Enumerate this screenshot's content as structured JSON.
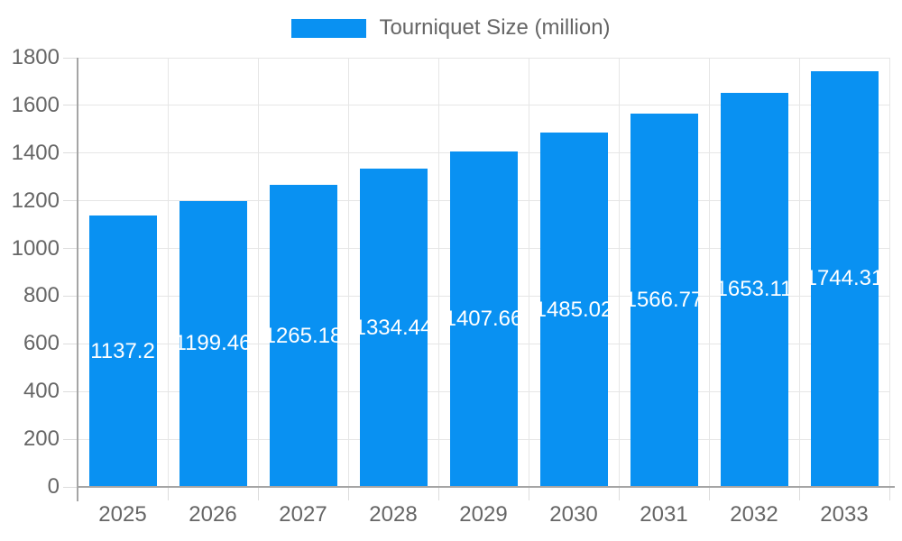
{
  "legend": {
    "label": "Tourniquet Size (million)"
  },
  "colors": {
    "bar": "#0991f2",
    "grid": "#e6e6e6",
    "tick": "#dcdcdc",
    "axis": "#a5a5a5",
    "text": "#666666",
    "bar_label": "#ffffff",
    "background": "#ffffff"
  },
  "chart_data": {
    "type": "bar",
    "title": "",
    "legend_position": "top",
    "grid": true,
    "categories": [
      "2025",
      "2026",
      "2027",
      "2028",
      "2029",
      "2030",
      "2031",
      "2032",
      "2033"
    ],
    "series": [
      {
        "name": "Tourniquet Size (million)",
        "values": [
          1137.2,
          1199.46,
          1265.18,
          1334.44,
          1407.66,
          1485.02,
          1566.77,
          1653.11,
          1744.31
        ]
      }
    ],
    "value_labels": [
      "1137.2",
      "1199.46",
      "1265.18",
      "1334.44",
      "1407.66",
      "1485.02",
      "1566.77",
      "1653.11",
      "1744.31"
    ],
    "xlabel": "",
    "ylabel": "",
    "ylim": [
      0,
      1800
    ],
    "yticks": [
      0,
      200,
      400,
      600,
      800,
      1000,
      1200,
      1400,
      1600,
      1800
    ]
  }
}
